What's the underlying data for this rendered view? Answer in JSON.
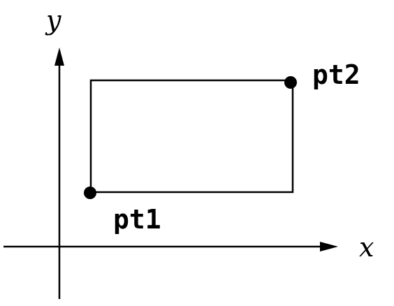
{
  "labels": {
    "y_axis": "y",
    "x_axis": "x",
    "point1": "pt1",
    "point2": "pt2"
  },
  "colors": {
    "ink": "#000000",
    "background": "#ffffff"
  }
}
